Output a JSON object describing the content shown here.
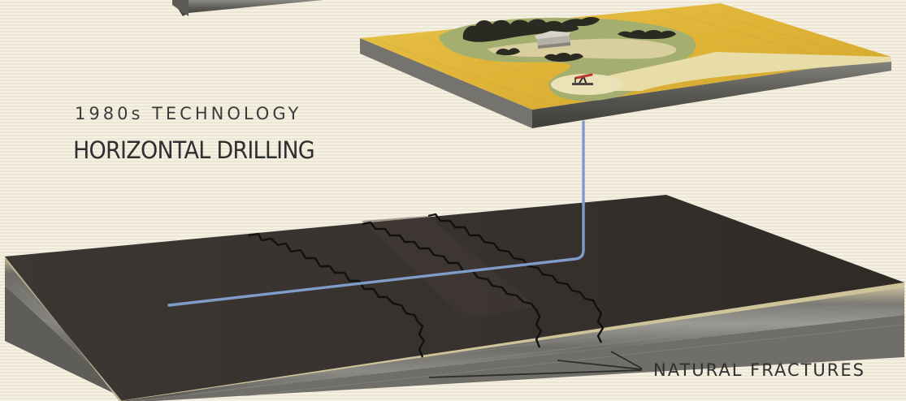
{
  "subtitle": "1980s TECHNOLOGY",
  "title": "HORIZONTAL DRILLING",
  "annotation": "NATURAL FRACTURES",
  "colors": {
    "background": "#f2ead7",
    "well_bore": "#7f9dc8",
    "formation_top": "#3a3532",
    "fracture_lines": "#111111",
    "surface_field": "#e2b63a"
  },
  "icons": [
    "pumpjack-icon",
    "farmhouse-icon",
    "tree-icon"
  ]
}
